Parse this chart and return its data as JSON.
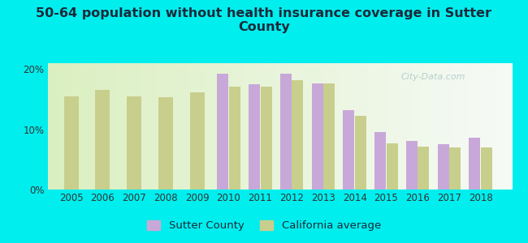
{
  "title": "50-64 population without health insurance coverage in Sutter\nCounty",
  "years": [
    2005,
    2006,
    2007,
    2008,
    2009,
    2010,
    2011,
    2012,
    2013,
    2014,
    2015,
    2016,
    2017,
    2018
  ],
  "sutter_county": [
    null,
    null,
    null,
    null,
    null,
    19.2,
    17.5,
    19.3,
    17.6,
    13.2,
    9.5,
    8.1,
    7.6,
    8.6
  ],
  "california_avg": [
    15.5,
    16.5,
    15.5,
    15.3,
    16.1,
    17.1,
    17.1,
    18.2,
    17.6,
    12.3,
    7.7,
    7.1,
    7.0,
    7.0
  ],
  "sutter_color": "#c8a8d8",
  "ca_color": "#c8cf8c",
  "background_color": "#00eeee",
  "bar_width": 0.36,
  "ylim": [
    0,
    21
  ],
  "yticks": [
    0,
    10,
    20
  ],
  "ytick_labels": [
    "0%",
    "10%",
    "20%"
  ],
  "legend_sutter_label": "Sutter County",
  "legend_ca_label": "California average",
  "title_fontsize": 11.5,
  "tick_fontsize": 8.5,
  "watermark": "City-Data.com"
}
